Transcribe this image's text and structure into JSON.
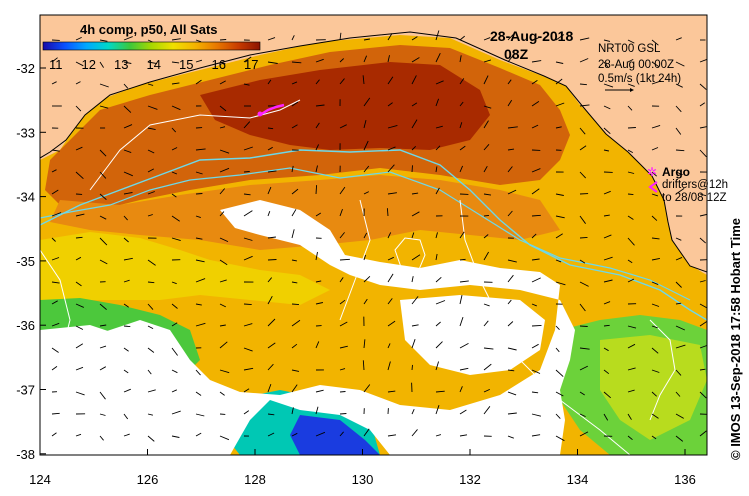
{
  "map": {
    "title": "4h comp, p50, All Sats",
    "date": "28-Aug-2018",
    "time": "08Z",
    "info": [
      "NRT00 GSL",
      "28-Aug 00:00Z",
      "0.5m/s (1kt 24h)"
    ],
    "argo_label": "Argo",
    "drifters_label": "drifters@12h",
    "drifters_to": "to 28/08 12Z",
    "credit": "© IMOS 13-Sep-2018 17:58 Hobart Time",
    "colorbar_ticks": [
      "11",
      "12",
      "13",
      "14",
      "15",
      "16",
      "17"
    ],
    "colorbar_stops": [
      "#1a0aa8",
      "#0a50ff",
      "#00a8ff",
      "#00d8c8",
      "#3cc83c",
      "#a8d800",
      "#f0e000",
      "#f5b400",
      "#e87800",
      "#c83c00",
      "#8c1400"
    ],
    "lat_ticks": [
      "-32",
      "-33",
      "-34",
      "-35",
      "-36",
      "-37",
      "-38"
    ],
    "lon_ticks": [
      "124",
      "126",
      "128",
      "130",
      "132",
      "134",
      "136"
    ],
    "land_color": "#fbc79a",
    "cloud_color": "#ffffff",
    "marker_color": "#ff22ff",
    "contour_cyan": "#6ed8e8",
    "contour_white": "#ffffff"
  }
}
